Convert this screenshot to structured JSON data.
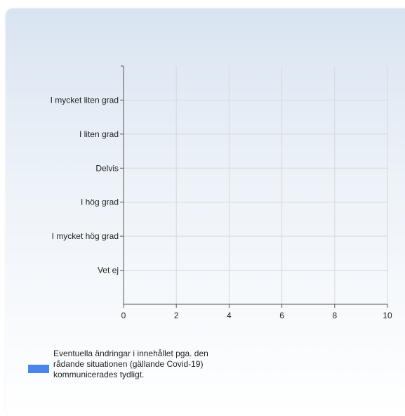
{
  "chart_data": {
    "type": "bar",
    "orientation": "horizontal",
    "categories": [
      "I mycket liten grad",
      "I liten grad",
      "Delvis",
      "I hög grad",
      "I mycket hög grad",
      "Vet ej"
    ],
    "series": [
      {
        "name": "Eventuella ändringar i innehållet pga. den rådande situationen (gällande Covid-19) kommunicerades tydligt.",
        "values": [
          0,
          0,
          0,
          0,
          0,
          0
        ],
        "color": "#4a86e8"
      }
    ],
    "x_ticks": [
      "0",
      "2",
      "4",
      "6",
      "8",
      "10"
    ],
    "xlim": [
      0,
      10
    ],
    "grid": true,
    "legend_position": "bottom-left"
  }
}
